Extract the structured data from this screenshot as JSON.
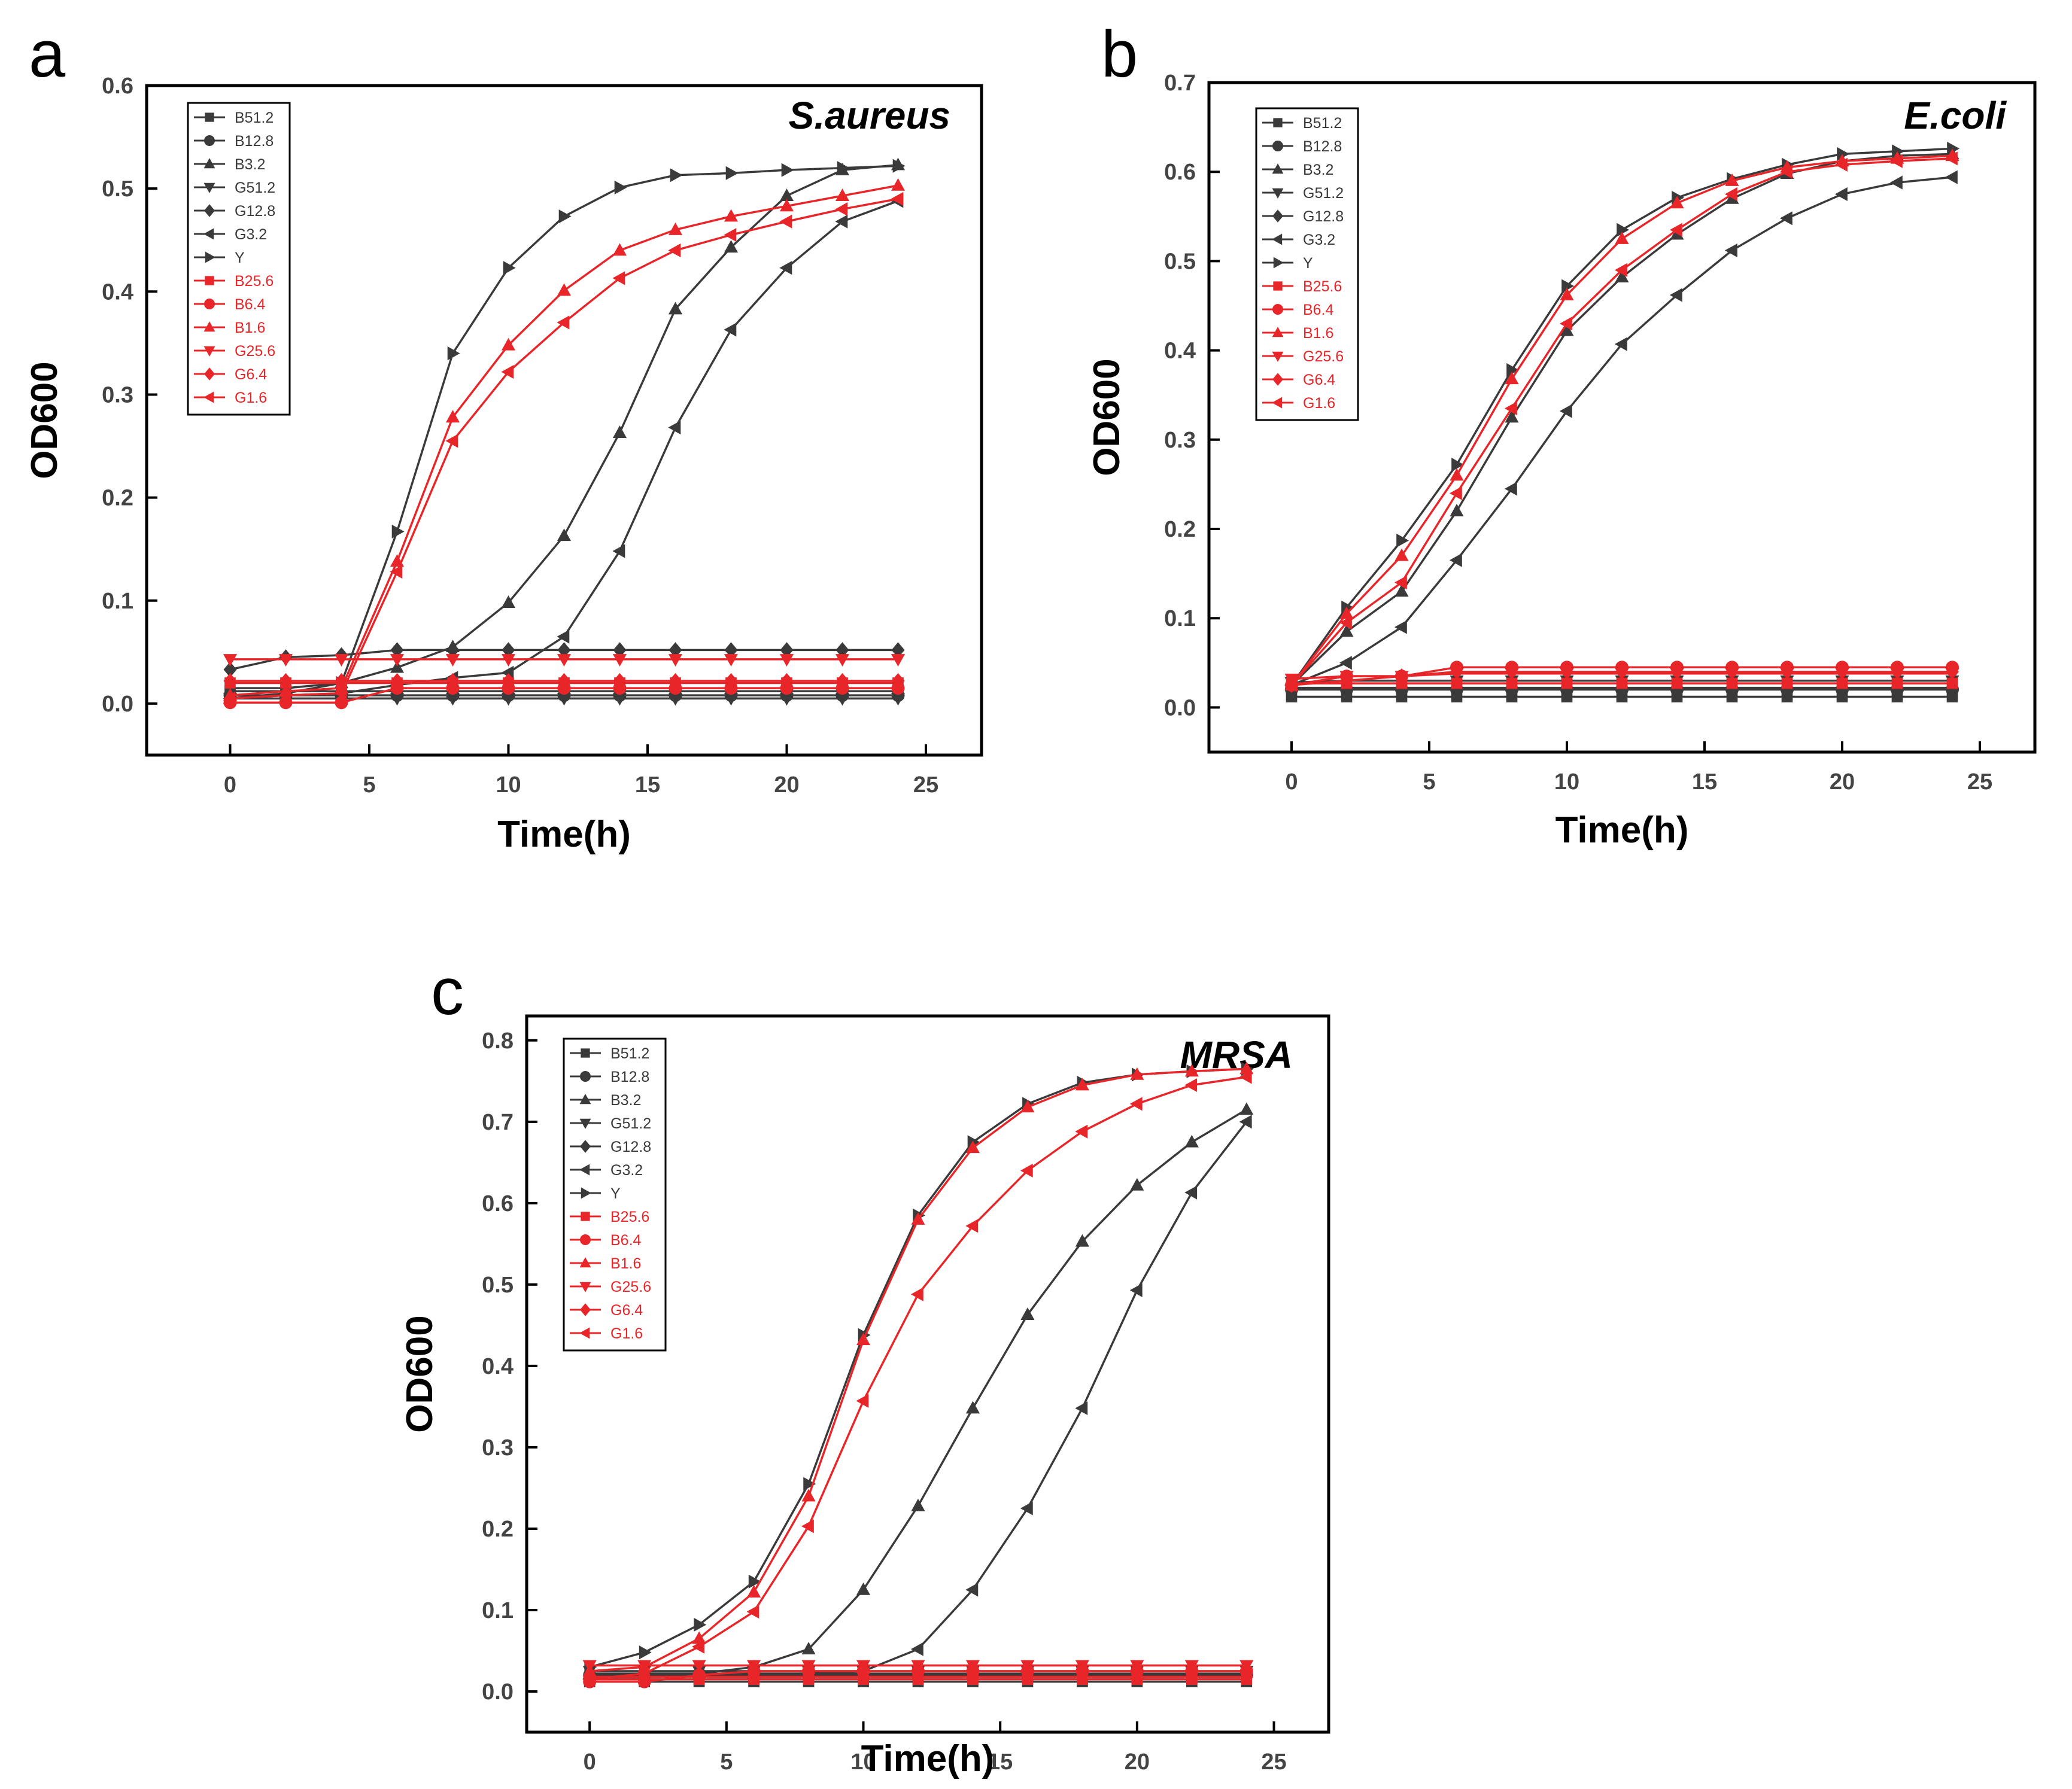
{
  "colors": {
    "black_series": "#3a3a3a",
    "red_series": "#e8262a",
    "axis": "#000000"
  },
  "legend_labels": [
    "B51.2",
    "B12.8",
    "B3.2",
    "G51.2",
    "G12.8",
    "G3.2",
    "Y",
    "B25.6",
    "B6.4",
    "B1.6",
    "G25.6",
    "G6.4",
    "G1.6"
  ],
  "chart_data": [
    {
      "type": "line",
      "panel_label": "a",
      "organism": "S.aureus",
      "xlabel": "Time(h)",
      "ylabel": "OD600",
      "xlim": [
        -3,
        27
      ],
      "ylim": [
        -0.05,
        0.6
      ],
      "xticks": [
        "0",
        "5",
        "10",
        "15",
        "20",
        "25"
      ],
      "yticks": [
        "0.0",
        "0.1",
        "0.2",
        "0.3",
        "0.4",
        "0.5",
        "0.6"
      ],
      "legend_position": "top-left",
      "x": [
        0,
        2,
        4,
        6,
        8,
        10,
        12,
        14,
        16,
        18,
        20,
        22,
        24
      ],
      "series": [
        {
          "name": "B51.2",
          "color": "black",
          "marker": "square",
          "values": [
            0.012,
            0.012,
            0.012,
            0.012,
            0.012,
            0.012,
            0.012,
            0.012,
            0.012,
            0.012,
            0.012,
            0.012,
            0.012
          ]
        },
        {
          "name": "B12.8",
          "color": "black",
          "marker": "circle",
          "values": [
            0.008,
            0.008,
            0.008,
            0.008,
            0.008,
            0.008,
            0.008,
            0.008,
            0.008,
            0.008,
            0.008,
            0.008,
            0.008
          ]
        },
        {
          "name": "B3.2",
          "color": "black",
          "marker": "triangle-up",
          "values": [
            0.005,
            0.01,
            0.02,
            0.035,
            0.055,
            0.098,
            0.163,
            0.263,
            0.383,
            0.443,
            0.493,
            0.518,
            0.523
          ]
        },
        {
          "name": "G51.2",
          "color": "black",
          "marker": "triangle-down",
          "values": [
            0.005,
            0.005,
            0.005,
            0.005,
            0.005,
            0.005,
            0.005,
            0.005,
            0.005,
            0.005,
            0.005,
            0.005,
            0.005
          ]
        },
        {
          "name": "G12.8",
          "color": "black",
          "marker": "diamond",
          "values": [
            0.033,
            0.045,
            0.047,
            0.052,
            0.052,
            0.052,
            0.052,
            0.052,
            0.052,
            0.052,
            0.052,
            0.052,
            0.052
          ]
        },
        {
          "name": "G3.2",
          "color": "black",
          "marker": "triangle-left",
          "values": [
            0.005,
            0.008,
            0.01,
            0.018,
            0.025,
            0.03,
            0.065,
            0.148,
            0.268,
            0.363,
            0.423,
            0.468,
            0.488
          ]
        },
        {
          "name": "Y",
          "color": "black",
          "marker": "triangle-right",
          "values": [
            0.015,
            0.015,
            0.02,
            0.167,
            0.34,
            0.423,
            0.473,
            0.501,
            0.513,
            0.515,
            0.518,
            0.52,
            0.522
          ]
        },
        {
          "name": "B25.6",
          "color": "red",
          "marker": "square",
          "values": [
            0.02,
            0.02,
            0.02,
            0.02,
            0.02,
            0.02,
            0.02,
            0.02,
            0.02,
            0.02,
            0.02,
            0.02,
            0.02
          ]
        },
        {
          "name": "B6.4",
          "color": "red",
          "marker": "circle",
          "values": [
            0.001,
            0.001,
            0.001,
            0.015,
            0.015,
            0.015,
            0.015,
            0.015,
            0.015,
            0.015,
            0.015,
            0.015,
            0.015
          ]
        },
        {
          "name": "B1.6",
          "color": "red",
          "marker": "triangle-up",
          "values": [
            0.008,
            0.012,
            0.015,
            0.138,
            0.278,
            0.348,
            0.401,
            0.44,
            0.46,
            0.473,
            0.483,
            0.493,
            0.503
          ]
        },
        {
          "name": "G25.6",
          "color": "red",
          "marker": "triangle-down",
          "values": [
            0.043,
            0.043,
            0.043,
            0.043,
            0.043,
            0.043,
            0.043,
            0.043,
            0.043,
            0.043,
            0.043,
            0.043,
            0.043
          ]
        },
        {
          "name": "G6.4",
          "color": "red",
          "marker": "diamond",
          "values": [
            0.022,
            0.022,
            0.022,
            0.022,
            0.022,
            0.022,
            0.022,
            0.022,
            0.022,
            0.022,
            0.022,
            0.022,
            0.022
          ]
        },
        {
          "name": "G1.6",
          "color": "red",
          "marker": "triangle-left",
          "values": [
            0.005,
            0.008,
            0.01,
            0.128,
            0.255,
            0.322,
            0.37,
            0.413,
            0.44,
            0.455,
            0.468,
            0.48,
            0.49
          ]
        }
      ]
    },
    {
      "type": "line",
      "panel_label": "b",
      "organism": "E.coli",
      "xlabel": "Time(h)",
      "ylabel": "OD600",
      "xlim": [
        -3,
        27
      ],
      "ylim": [
        -0.05,
        0.7
      ],
      "xticks": [
        "0",
        "5",
        "10",
        "15",
        "20",
        "25"
      ],
      "yticks": [
        "0.0",
        "0.1",
        "0.2",
        "0.3",
        "0.4",
        "0.5",
        "0.6",
        "0.7"
      ],
      "legend_position": "top-left",
      "x": [
        0,
        2,
        4,
        6,
        8,
        10,
        12,
        14,
        16,
        18,
        20,
        22,
        24
      ],
      "series": [
        {
          "name": "B51.2",
          "color": "black",
          "marker": "square",
          "values": [
            0.012,
            0.012,
            0.012,
            0.012,
            0.012,
            0.012,
            0.012,
            0.012,
            0.012,
            0.012,
            0.012,
            0.012,
            0.012
          ]
        },
        {
          "name": "B12.8",
          "color": "black",
          "marker": "circle",
          "values": [
            0.02,
            0.02,
            0.02,
            0.02,
            0.02,
            0.02,
            0.02,
            0.02,
            0.02,
            0.02,
            0.02,
            0.02,
            0.02
          ]
        },
        {
          "name": "B3.2",
          "color": "black",
          "marker": "triangle-up",
          "values": [
            0.025,
            0.085,
            0.13,
            0.22,
            0.325,
            0.422,
            0.482,
            0.53,
            0.57,
            0.598,
            0.612,
            0.618,
            0.62
          ]
        },
        {
          "name": "G51.2",
          "color": "black",
          "marker": "triangle-down",
          "values": [
            0.028,
            0.03,
            0.03,
            0.03,
            0.03,
            0.03,
            0.03,
            0.03,
            0.03,
            0.03,
            0.03,
            0.03,
            0.03
          ]
        },
        {
          "name": "G12.8",
          "color": "black",
          "marker": "diamond",
          "values": [
            0.022,
            0.022,
            0.022,
            0.022,
            0.022,
            0.022,
            0.022,
            0.022,
            0.022,
            0.022,
            0.022,
            0.022,
            0.022
          ]
        },
        {
          "name": "G3.2",
          "color": "black",
          "marker": "triangle-left",
          "values": [
            0.025,
            0.05,
            0.09,
            0.165,
            0.245,
            0.332,
            0.407,
            0.462,
            0.512,
            0.548,
            0.575,
            0.588,
            0.594
          ]
        },
        {
          "name": "Y",
          "color": "black",
          "marker": "triangle-right",
          "values": [
            0.025,
            0.112,
            0.187,
            0.272,
            0.378,
            0.472,
            0.535,
            0.571,
            0.592,
            0.608,
            0.62,
            0.623,
            0.626
          ]
        },
        {
          "name": "B25.6",
          "color": "red",
          "marker": "square",
          "values": [
            0.027,
            0.027,
            0.027,
            0.027,
            0.027,
            0.027,
            0.027,
            0.027,
            0.027,
            0.027,
            0.027,
            0.027,
            0.027
          ]
        },
        {
          "name": "B6.4",
          "color": "red",
          "marker": "circle",
          "values": [
            0.025,
            0.035,
            0.035,
            0.045,
            0.045,
            0.045,
            0.045,
            0.045,
            0.045,
            0.045,
            0.045,
            0.045,
            0.045
          ]
        },
        {
          "name": "B1.6",
          "color": "red",
          "marker": "triangle-up",
          "values": [
            0.025,
            0.105,
            0.17,
            0.26,
            0.368,
            0.462,
            0.525,
            0.565,
            0.59,
            0.605,
            0.612,
            0.615,
            0.618
          ]
        },
        {
          "name": "G25.6",
          "color": "red",
          "marker": "triangle-down",
          "values": [
            0.032,
            0.035,
            0.035,
            0.038,
            0.038,
            0.038,
            0.038,
            0.038,
            0.038,
            0.038,
            0.038,
            0.038,
            0.038
          ]
        },
        {
          "name": "G6.4",
          "color": "red",
          "marker": "diamond",
          "values": [
            0.025,
            0.03,
            0.035,
            0.04,
            0.04,
            0.04,
            0.04,
            0.04,
            0.04,
            0.04,
            0.04,
            0.04,
            0.04
          ]
        },
        {
          "name": "G1.6",
          "color": "red",
          "marker": "triangle-left",
          "values": [
            0.025,
            0.095,
            0.14,
            0.24,
            0.335,
            0.43,
            0.49,
            0.535,
            0.575,
            0.6,
            0.608,
            0.612,
            0.615
          ]
        }
      ]
    },
    {
      "type": "line",
      "panel_label": "c",
      "organism": "MRSA",
      "xlabel": "Time(h)",
      "ylabel": "OD600",
      "xlim": [
        -2.3,
        27
      ],
      "ylim": [
        -0.05,
        0.83
      ],
      "xticks": [
        "0",
        "5",
        "10",
        "15",
        "20",
        "25"
      ],
      "yticks": [
        "0.0",
        "0.1",
        "0.2",
        "0.3",
        "0.4",
        "0.5",
        "0.6",
        "0.7",
        "0.8"
      ],
      "legend_position": "top-left",
      "x": [
        0,
        2,
        4,
        6,
        8,
        10,
        12,
        14,
        16,
        18,
        20,
        22,
        24
      ],
      "series": [
        {
          "name": "B51.2",
          "color": "black",
          "marker": "square",
          "values": [
            0.012,
            0.012,
            0.012,
            0.012,
            0.012,
            0.012,
            0.012,
            0.012,
            0.012,
            0.012,
            0.012,
            0.012,
            0.012
          ]
        },
        {
          "name": "B12.8",
          "color": "black",
          "marker": "circle",
          "values": [
            0.02,
            0.02,
            0.02,
            0.02,
            0.02,
            0.02,
            0.02,
            0.02,
            0.02,
            0.02,
            0.02,
            0.02,
            0.02
          ]
        },
        {
          "name": "B3.2",
          "color": "black",
          "marker": "triangle-up",
          "values": [
            0.022,
            0.022,
            0.022,
            0.03,
            0.052,
            0.125,
            0.228,
            0.348,
            0.463,
            0.553,
            0.622,
            0.675,
            0.715
          ]
        },
        {
          "name": "G51.2",
          "color": "black",
          "marker": "triangle-down",
          "values": [
            0.025,
            0.025,
            0.025,
            0.025,
            0.025,
            0.025,
            0.025,
            0.025,
            0.025,
            0.025,
            0.025,
            0.025,
            0.025
          ]
        },
        {
          "name": "G12.8",
          "color": "black",
          "marker": "diamond",
          "values": [
            0.02,
            0.022,
            0.022,
            0.022,
            0.022,
            0.022,
            0.022,
            0.022,
            0.022,
            0.022,
            0.022,
            0.022,
            0.022
          ]
        },
        {
          "name": "G3.2",
          "color": "black",
          "marker": "triangle-left",
          "values": [
            0.015,
            0.018,
            0.02,
            0.022,
            0.022,
            0.025,
            0.052,
            0.125,
            0.225,
            0.348,
            0.493,
            0.613,
            0.7
          ]
        },
        {
          "name": "Y",
          "color": "black",
          "marker": "triangle-right",
          "values": [
            0.03,
            0.048,
            0.082,
            0.135,
            0.255,
            0.438,
            0.585,
            0.675,
            0.722,
            0.748,
            0.758,
            0.762,
            0.765
          ]
        },
        {
          "name": "B25.6",
          "color": "red",
          "marker": "square",
          "values": [
            0.015,
            0.015,
            0.015,
            0.015,
            0.015,
            0.015,
            0.015,
            0.015,
            0.015,
            0.015,
            0.015,
            0.015,
            0.015
          ]
        },
        {
          "name": "B6.4",
          "color": "red",
          "marker": "circle",
          "values": [
            0.012,
            0.012,
            0.02,
            0.025,
            0.025,
            0.025,
            0.025,
            0.025,
            0.025,
            0.025,
            0.025,
            0.025,
            0.025
          ]
        },
        {
          "name": "B1.6",
          "color": "red",
          "marker": "triangle-up",
          "values": [
            0.025,
            0.03,
            0.065,
            0.122,
            0.24,
            0.432,
            0.58,
            0.668,
            0.718,
            0.745,
            0.758,
            0.762,
            0.765
          ]
        },
        {
          "name": "G25.6",
          "color": "red",
          "marker": "triangle-down",
          "values": [
            0.032,
            0.032,
            0.032,
            0.032,
            0.032,
            0.032,
            0.032,
            0.032,
            0.032,
            0.032,
            0.032,
            0.032,
            0.032
          ]
        },
        {
          "name": "G6.4",
          "color": "red",
          "marker": "diamond",
          "values": [
            0.018,
            0.018,
            0.018,
            0.018,
            0.018,
            0.018,
            0.018,
            0.018,
            0.018,
            0.018,
            0.018,
            0.018,
            0.018
          ]
        },
        {
          "name": "G1.6",
          "color": "red",
          "marker": "triangle-left",
          "values": [
            0.015,
            0.022,
            0.055,
            0.098,
            0.203,
            0.357,
            0.488,
            0.572,
            0.64,
            0.688,
            0.722,
            0.745,
            0.755
          ]
        }
      ]
    }
  ]
}
